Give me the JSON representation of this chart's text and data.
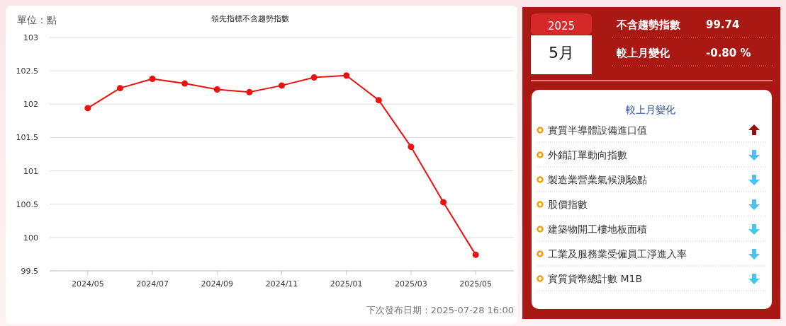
{
  "chart_data": [
    {
      "type": "line",
      "title": "領先指標不含趨勢指數",
      "ylabel": "單位：點",
      "categories": [
        "2024/05",
        null,
        "2024/07",
        null,
        "2024/09",
        null,
        "2024/11",
        null,
        "2025/01",
        null,
        "2025/03",
        null,
        "2025/05"
      ],
      "series": [
        {
          "color": "#ee1111",
          "values": [
            101.94,
            102.24,
            102.38,
            102.31,
            102.22,
            102.18,
            102.28,
            102.4,
            102.43,
            102.06,
            101.36,
            100.53,
            99.74
          ]
        }
      ],
      "ylim": [
        99.5,
        103
      ],
      "yticks": [
        99.5,
        100,
        100.5,
        101,
        101.5,
        102,
        102.5,
        103
      ],
      "grid": "y",
      "marker": "circle",
      "annotations": [
        "下次發布日期 : 2025-07-28 16:00"
      ]
    },
    {
      "type": "other",
      "title": "較上月變化",
      "annotations": [
        "2025",
        "5月",
        "不含趨勢指數",
        "99.74",
        "較上月變化",
        "-0.80 %"
      ],
      "categories": [
        "實質半導體設備進口值",
        "外銷訂單動向指數",
        "製造業營業氣候測驗點",
        "股價指數",
        "建築物開工樓地板面積",
        "工業及服務業受僱員工淨進入率",
        "實質貨幣總計數 M1B"
      ]
    }
  ]
}
